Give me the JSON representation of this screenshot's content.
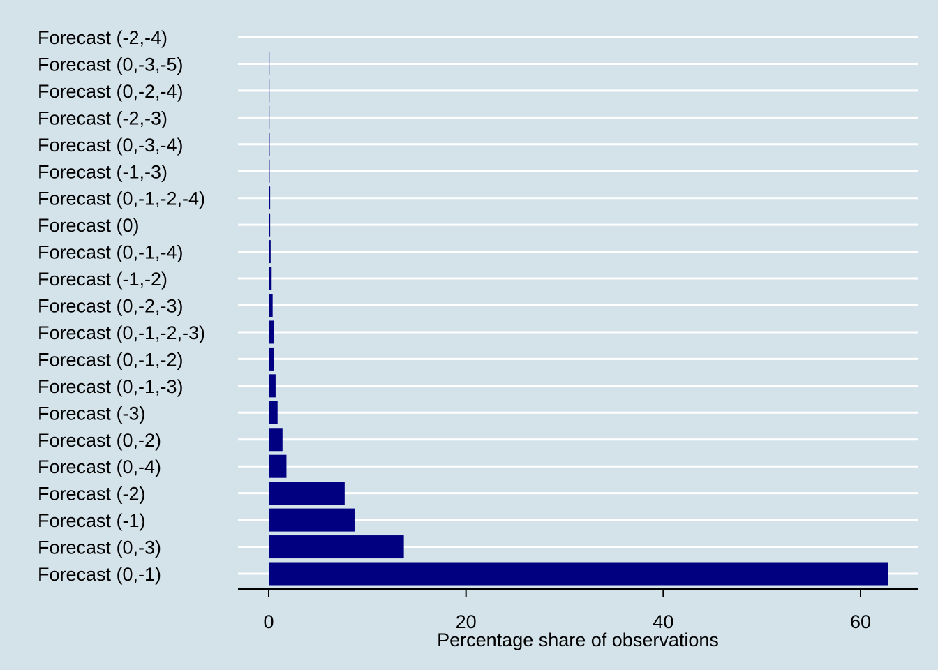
{
  "chart_data": {
    "type": "bar",
    "orientation": "horizontal",
    "categories": [
      "Forecast (0,-1)",
      "Forecast (0,-3)",
      "Forecast (-1)",
      "Forecast (-2)",
      "Forecast (0,-4)",
      "Forecast (0,-2)",
      "Forecast (-3)",
      "Forecast (0,-1,-3)",
      "Forecast (0,-1,-2)",
      "Forecast (0,-1,-2,-3)",
      "Forecast (0,-2,-3)",
      "Forecast (-1,-2)",
      "Forecast (0,-1,-4)",
      "Forecast (0)",
      "Forecast (0,-1,-2,-4)",
      "Forecast (-1,-3)",
      "Forecast (0,-3,-4)",
      "Forecast (-2,-3)",
      "Forecast (0,-2,-4)",
      "Forecast (0,-3,-5)",
      "Forecast (-2,-4)"
    ],
    "values": [
      62.8,
      13.7,
      8.7,
      7.7,
      1.8,
      1.4,
      0.9,
      0.7,
      0.5,
      0.5,
      0.4,
      0.3,
      0.2,
      0.15,
      0.15,
      0.1,
      0.1,
      0.08,
      0.08,
      0.06,
      0.0
    ],
    "xlabel": "Percentage share of observations",
    "ylabel": "",
    "xlim": [
      -3,
      66
    ],
    "xticks": [
      0,
      20,
      40,
      60
    ],
    "grid": "horizontal",
    "bar_color": "#000080",
    "background_color": "#d4e3ea",
    "grid_color": "#ffffff"
  }
}
